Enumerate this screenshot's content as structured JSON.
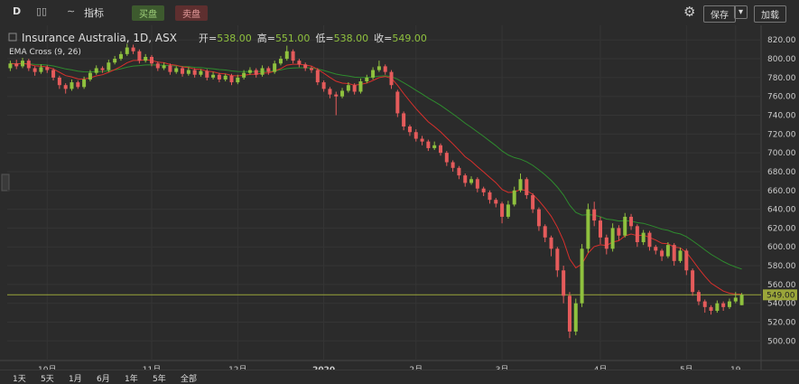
{
  "toolbar": {
    "interval": "D",
    "indicators": "指标",
    "buy": "买盘",
    "sell": "卖盘",
    "save": "保存",
    "load": "加载"
  },
  "bottom_bar": [
    "1天",
    "5天",
    "1月",
    "6月",
    "1年",
    "5年",
    "全部"
  ],
  "chart_data": {
    "type": "candlestick",
    "title": "Insurance Australia, 1D, ASX",
    "ohlc_legend": [
      {
        "label": "开=",
        "value": "538.00"
      },
      {
        "label": "高=",
        "value": "551.00"
      },
      {
        "label": "低=",
        "value": "538.00"
      },
      {
        "label": "收=",
        "value": "549.00"
      }
    ],
    "indicator": {
      "label": "EMA Cross (9, 26)",
      "fast_period": 9,
      "slow_period": 26,
      "fast_color": "#d9302c",
      "slow_color": "#2e8b2e"
    },
    "last_price_label": "549.00",
    "up_color": "#8fc13e",
    "down_color": "#e55b5b",
    "ylim": [
      483,
      826
    ],
    "yticks": [
      {
        "value": 500,
        "label": "500.00"
      },
      {
        "value": 520,
        "label": "520.00"
      },
      {
        "value": 540,
        "label": "540.00"
      },
      {
        "value": 560,
        "label": "560.00"
      },
      {
        "value": 580,
        "label": "580.00"
      },
      {
        "value": 600,
        "label": "600.00"
      },
      {
        "value": 620,
        "label": "620.00"
      },
      {
        "value": 640,
        "label": "640.00"
      },
      {
        "value": 660,
        "label": "660.00"
      },
      {
        "value": 680,
        "label": "680.00"
      },
      {
        "value": 700,
        "label": "700.00"
      },
      {
        "value": 720,
        "label": "720.00"
      },
      {
        "value": 740,
        "label": "740.00"
      },
      {
        "value": 760,
        "label": "760.00"
      },
      {
        "value": 780,
        "label": "780.00"
      },
      {
        "value": 800,
        "label": "800.00"
      },
      {
        "value": 820,
        "label": "820.00"
      }
    ],
    "grid": true,
    "categories": [
      null,
      null,
      null,
      null,
      null,
      null,
      "10月",
      null,
      null,
      null,
      null,
      null,
      null,
      null,
      null,
      null,
      null,
      null,
      null,
      null,
      null,
      null,
      null,
      "11月",
      null,
      null,
      null,
      null,
      null,
      null,
      null,
      null,
      null,
      null,
      null,
      null,
      null,
      "12月",
      null,
      null,
      null,
      null,
      null,
      null,
      null,
      null,
      null,
      null,
      null,
      null,
      null,
      "2020",
      null,
      null,
      null,
      null,
      null,
      null,
      null,
      null,
      null,
      null,
      null,
      null,
      null,
      null,
      "2月",
      null,
      null,
      null,
      null,
      null,
      null,
      null,
      null,
      null,
      null,
      null,
      null,
      null,
      "3月",
      null,
      null,
      null,
      null,
      null,
      null,
      null,
      null,
      null,
      null,
      null,
      null,
      null,
      null,
      null,
      "4月",
      null,
      null,
      null,
      null,
      null,
      null,
      null,
      null,
      null,
      null,
      null,
      null,
      null,
      "5月",
      null,
      null,
      null,
      null,
      null,
      null,
      null,
      "19",
      null
    ],
    "candles": [
      [
        790,
        798,
        787,
        795
      ],
      [
        795,
        799,
        789,
        792
      ],
      [
        792,
        801,
        790,
        798
      ],
      [
        798,
        800,
        787,
        790
      ],
      [
        790,
        792,
        782,
        786
      ],
      [
        786,
        794,
        784,
        791
      ],
      [
        791,
        793,
        785,
        788
      ],
      [
        788,
        790,
        777,
        780
      ],
      [
        780,
        782,
        768,
        772
      ],
      [
        772,
        774,
        763,
        768
      ],
      [
        768,
        778,
        766,
        775
      ],
      [
        775,
        777,
        768,
        770
      ],
      [
        770,
        781,
        768,
        778
      ],
      [
        778,
        788,
        776,
        785
      ],
      [
        785,
        793,
        783,
        790
      ],
      [
        790,
        792,
        785,
        788
      ],
      [
        788,
        799,
        786,
        796
      ],
      [
        796,
        803,
        794,
        800
      ],
      [
        800,
        808,
        798,
        805
      ],
      [
        805,
        816,
        803,
        812
      ],
      [
        812,
        815,
        805,
        808
      ],
      [
        808,
        810,
        795,
        798
      ],
      [
        798,
        805,
        796,
        802
      ],
      [
        802,
        804,
        792,
        795
      ],
      [
        795,
        797,
        787,
        790
      ],
      [
        790,
        796,
        788,
        793
      ],
      [
        793,
        795,
        783,
        786
      ],
      [
        786,
        792,
        784,
        790
      ],
      [
        790,
        792,
        781,
        784
      ],
      [
        784,
        791,
        782,
        788
      ],
      [
        788,
        790,
        780,
        783
      ],
      [
        783,
        789,
        781,
        787
      ],
      [
        787,
        789,
        777,
        780
      ],
      [
        780,
        786,
        778,
        783
      ],
      [
        783,
        785,
        775,
        778
      ],
      [
        778,
        784,
        776,
        782
      ],
      [
        782,
        784,
        772,
        775
      ],
      [
        775,
        783,
        773,
        780
      ],
      [
        780,
        788,
        778,
        785
      ],
      [
        785,
        791,
        783,
        788
      ],
      [
        788,
        790,
        780,
        783
      ],
      [
        783,
        793,
        781,
        790
      ],
      [
        790,
        792,
        783,
        786
      ],
      [
        786,
        798,
        784,
        795
      ],
      [
        795,
        803,
        793,
        800
      ],
      [
        800,
        814,
        798,
        808
      ],
      [
        808,
        810,
        795,
        798
      ],
      [
        798,
        800,
        791,
        794
      ],
      [
        794,
        796,
        787,
        790
      ],
      [
        790,
        792,
        785,
        788
      ],
      [
        788,
        790,
        772,
        775
      ],
      [
        775,
        777,
        765,
        768
      ],
      [
        768,
        770,
        758,
        762
      ],
      [
        762,
        765,
        740,
        760
      ],
      [
        760,
        769,
        758,
        766
      ],
      [
        766,
        775,
        764,
        772
      ],
      [
        772,
        774,
        762,
        765
      ],
      [
        765,
        779,
        763,
        776
      ],
      [
        776,
        783,
        774,
        780
      ],
      [
        780,
        791,
        778,
        788
      ],
      [
        788,
        798,
        786,
        792
      ],
      [
        792,
        794,
        783,
        786
      ],
      [
        786,
        788,
        768,
        772
      ],
      [
        765,
        767,
        738,
        742
      ],
      [
        742,
        744,
        724,
        728
      ],
      [
        728,
        730,
        718,
        722
      ],
      [
        722,
        725,
        712,
        715
      ],
      [
        715,
        718,
        708,
        712
      ],
      [
        712,
        714,
        702,
        705
      ],
      [
        705,
        712,
        703,
        708
      ],
      [
        708,
        710,
        697,
        700
      ],
      [
        700,
        702,
        686,
        690
      ],
      [
        690,
        692,
        680,
        684
      ],
      [
        684,
        686,
        672,
        676
      ],
      [
        676,
        678,
        664,
        668
      ],
      [
        668,
        675,
        666,
        672
      ],
      [
        672,
        674,
        658,
        662
      ],
      [
        662,
        664,
        654,
        658
      ],
      [
        658,
        660,
        646,
        650
      ],
      [
        650,
        652,
        642,
        646
      ],
      [
        646,
        648,
        625,
        632
      ],
      [
        632,
        649,
        630,
        645
      ],
      [
        645,
        664,
        643,
        660
      ],
      [
        660,
        678,
        658,
        672
      ],
      [
        672,
        674,
        651,
        655
      ],
      [
        655,
        657,
        636,
        640
      ],
      [
        640,
        642,
        617,
        622
      ],
      [
        622,
        624,
        605,
        610
      ],
      [
        610,
        612,
        590,
        598
      ],
      [
        598,
        600,
        568,
        575
      ],
      [
        575,
        580,
        540,
        548
      ],
      [
        548,
        552,
        503,
        510
      ],
      [
        510,
        545,
        506,
        540
      ],
      [
        540,
        603,
        536,
        598
      ],
      [
        598,
        646,
        594,
        640
      ],
      [
        640,
        648,
        622,
        628
      ],
      [
        628,
        632,
        603,
        610
      ],
      [
        610,
        613,
        592,
        598
      ],
      [
        598,
        625,
        595,
        620
      ],
      [
        620,
        623,
        607,
        612
      ],
      [
        612,
        636,
        610,
        632
      ],
      [
        632,
        635,
        618,
        622
      ],
      [
        622,
        624,
        600,
        605
      ],
      [
        605,
        618,
        602,
        615
      ],
      [
        615,
        617,
        596,
        600
      ],
      [
        600,
        602,
        592,
        596
      ],
      [
        596,
        598,
        585,
        590
      ],
      [
        590,
        605,
        588,
        602
      ],
      [
        602,
        604,
        580,
        585
      ],
      [
        585,
        599,
        583,
        596
      ],
      [
        596,
        598,
        570,
        575
      ],
      [
        575,
        577,
        548,
        552
      ],
      [
        552,
        554,
        538,
        542
      ],
      [
        542,
        544,
        530,
        536
      ],
      [
        536,
        538,
        528,
        532
      ],
      [
        532,
        543,
        530,
        540
      ],
      [
        540,
        542,
        532,
        536
      ],
      [
        536,
        545,
        534,
        542
      ],
      [
        542,
        552,
        540,
        546
      ],
      [
        538,
        551,
        538,
        549
      ]
    ]
  }
}
